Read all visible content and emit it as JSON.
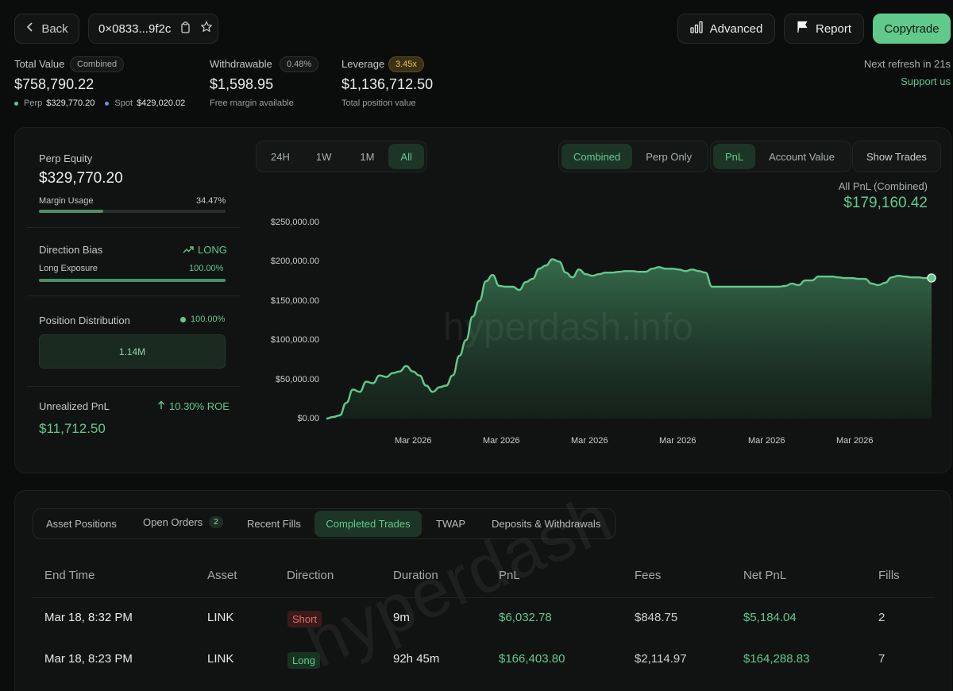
{
  "header": {
    "back_label": "Back",
    "address": "0×0833...9f2c",
    "advanced_label": "Advanced",
    "report_label": "Report",
    "copytrade_label": "Copytrade",
    "next_refresh": "Next refresh in 21s",
    "support": "Support us"
  },
  "summary": {
    "total_value_label": "Total Value",
    "total_value_badge": "Combined",
    "total_value": "$758,790.22",
    "perp_label": "Perp",
    "perp_value": "$329,770.20",
    "spot_label": "Spot",
    "spot_value": "$429,020.02",
    "withdrawable_label": "Withdrawable",
    "withdrawable_badge": "0.48%",
    "withdrawable_value": "$1,598.95",
    "withdrawable_sub": "Free margin available",
    "leverage_label": "Leverage",
    "leverage_badge": "3.45x",
    "leverage_value": "$1,136,712.50",
    "leverage_sub": "Total position value"
  },
  "left_panel": {
    "perp_equity_label": "Perp Equity",
    "perp_equity_value": "$329,770.20",
    "margin_usage_label": "Margin Usage",
    "margin_usage_value": "34.47%",
    "margin_usage_fraction": 0.3447,
    "direction_bias_label": "Direction Bias",
    "direction_bias_value": "LONG",
    "long_exposure_label": "Long Exposure",
    "long_exposure_value": "100.00%",
    "long_exposure_fraction": 1.0,
    "position_distribution_label": "Position Distribution",
    "position_distribution_value": "100.00%",
    "position_block": "1.14M",
    "unrealized_label": "Unrealized PnL",
    "unrealized_roe": "10.30% ROE",
    "unrealized_value": "$11,712.50"
  },
  "chart_controls": {
    "ranges": [
      "24H",
      "1W",
      "1M",
      "All"
    ],
    "active_range": "All",
    "mode": [
      "Combined",
      "Perp Only"
    ],
    "metric": [
      "PnL",
      "Account Value"
    ],
    "show_trades": "Show Trades",
    "pnl_title": "All PnL (Combined)",
    "pnl_value": "$179,160.42",
    "watermark": "hyperdash.info"
  },
  "chart_data": {
    "type": "area",
    "ylim": [
      0,
      250000
    ],
    "ytick_labels": [
      "$250,000.00",
      "$200,000.00",
      "$150,000.00",
      "$100,000.00",
      "$50,000.00",
      "$0.00"
    ],
    "xtick_labels": [
      "Mar 2026",
      "Mar 2026",
      "Mar 2026",
      "Mar 2026",
      "Mar 2026",
      "Mar 2026"
    ],
    "color": "#62c98c",
    "series": [
      {
        "values": [
          0,
          2000,
          4000,
          20000,
          37000,
          34000,
          47000,
          45000,
          55000,
          53000,
          58000,
          60000,
          67000,
          60000,
          55000,
          42000,
          34000,
          40000,
          42000,
          55000,
          80000,
          100000,
          130000,
          150000,
          175000,
          183000,
          169000,
          168000,
          168000,
          164000,
          174000,
          178000,
          191000,
          195000,
          203000,
          200000,
          186000,
          180000,
          190000,
          184000,
          182000,
          184000,
          186000,
          186000,
          187000,
          188000,
          188000,
          187000,
          187000,
          191000,
          193000,
          191000,
          191000,
          190000,
          188000,
          190000,
          188000,
          186000,
          168000,
          168000,
          168000,
          168000,
          168000,
          168000,
          168000,
          168000,
          168000,
          168000,
          168000,
          169000,
          172000,
          170000,
          176000,
          176000,
          181000,
          181000,
          181000,
          180000,
          179000,
          179000,
          178000,
          178000,
          172000,
          170000,
          173000,
          180000,
          182000,
          181000,
          180000,
          180000,
          179000,
          179160
        ]
      }
    ]
  },
  "tabs": [
    {
      "label": "Asset Positions",
      "badge": ""
    },
    {
      "label": "Open Orders",
      "badge": "2"
    },
    {
      "label": "Recent Fills",
      "badge": ""
    },
    {
      "label": "Completed Trades",
      "badge": ""
    },
    {
      "label": "TWAP",
      "badge": ""
    },
    {
      "label": "Deposits & Withdrawals",
      "badge": ""
    }
  ],
  "table": {
    "columns": [
      "End Time",
      "Asset",
      "Direction",
      "Duration",
      "PnL",
      "Fees",
      "Net PnL",
      "Fills"
    ],
    "rows": [
      [
        "Mar 18, 8:32 PM",
        "LINK",
        "Short",
        "9m",
        "$6,032.78",
        "$848.75",
        "$5,184.04",
        "2"
      ],
      [
        "Mar 18, 8:23 PM",
        "LINK",
        "Long",
        "92h 45m",
        "$166,403.80",
        "$2,114.97",
        "$164,288.83",
        "7"
      ]
    ]
  },
  "table_watermark": "hyperdash"
}
